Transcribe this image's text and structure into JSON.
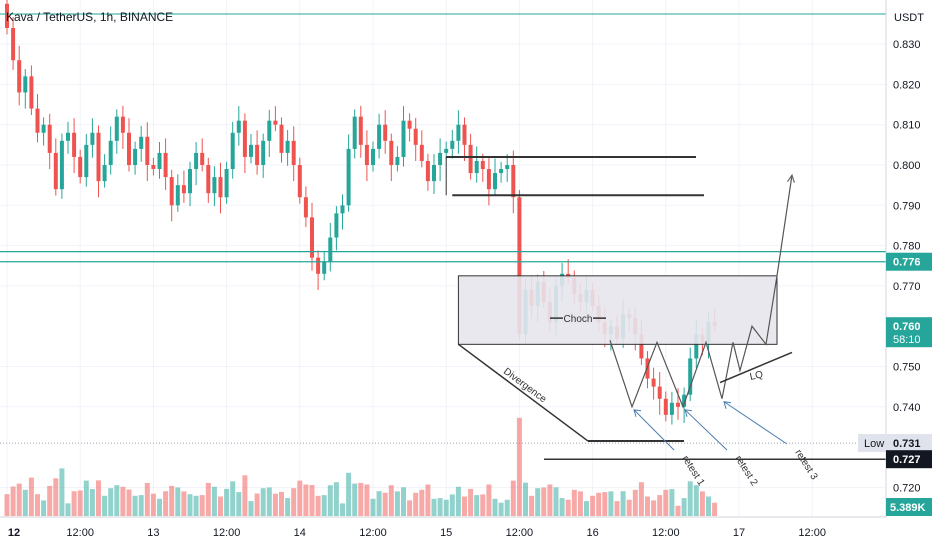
{
  "chart_data": {
    "type": "candlestick",
    "title": "Kava / TetherUS, 1h, BINANCE",
    "currency": "USDT",
    "y_ticks": [
      0.83,
      0.82,
      0.81,
      0.8,
      0.79,
      0.78,
      0.77,
      0.75,
      0.74,
      0.72
    ],
    "y_tick_labels": [
      "0.830",
      "0.820",
      "0.810",
      "0.800",
      "0.790",
      "0.780",
      "0.770",
      "0.750",
      "0.740",
      "0.720"
    ],
    "x_ticks": [
      {
        "hour": 0,
        "label": "12"
      },
      {
        "hour": 12,
        "label": "12:00"
      },
      {
        "hour": 24,
        "label": "13"
      },
      {
        "hour": 36,
        "label": "12:00"
      },
      {
        "hour": 48,
        "label": "14"
      },
      {
        "hour": 60,
        "label": "12:00"
      },
      {
        "hour": 72,
        "label": "15"
      },
      {
        "hour": 84,
        "label": "12:00"
      },
      {
        "hour": 96,
        "label": "16"
      },
      {
        "hour": 108,
        "label": "12:00"
      },
      {
        "hour": 120,
        "label": "17"
      },
      {
        "hour": 132,
        "label": "12:00"
      }
    ],
    "candles_closes": [
      0.834,
      0.826,
      0.818,
      0.822,
      0.814,
      0.808,
      0.81,
      0.803,
      0.794,
      0.806,
      0.808,
      0.802,
      0.797,
      0.805,
      0.808,
      0.796,
      0.8,
      0.806,
      0.812,
      0.808,
      0.8,
      0.804,
      0.807,
      0.8,
      0.799,
      0.803,
      0.797,
      0.79,
      0.795,
      0.793,
      0.799,
      0.803,
      0.8,
      0.793,
      0.797,
      0.792,
      0.799,
      0.808,
      0.811,
      0.802,
      0.805,
      0.8,
      0.806,
      0.811,
      0.81,
      0.803,
      0.806,
      0.8,
      0.792,
      0.787,
      0.777,
      0.773,
      0.776,
      0.782,
      0.788,
      0.79,
      0.804,
      0.812,
      0.805,
      0.8,
      0.804,
      0.81,
      0.806,
      0.8,
      0.802,
      0.811,
      0.809,
      0.805,
      0.801,
      0.796,
      0.8,
      0.803,
      0.804,
      0.806,
      0.81,
      0.805,
      0.798,
      0.801,
      0.799,
      0.794,
      0.798,
      0.799,
      0.8,
      0.792,
      0.758,
      0.769,
      0.765,
      0.771,
      0.766,
      0.761,
      0.77,
      0.773,
      0.772,
      0.768,
      0.766,
      0.769,
      0.765,
      0.761,
      0.758,
      0.76,
      0.757,
      0.763,
      0.762,
      0.758,
      0.752,
      0.747,
      0.745,
      0.742,
      0.738,
      0.741,
      0.74,
      0.743,
      0.752,
      0.758,
      0.756,
      0.761,
      0.76
    ],
    "high_line_values": [
      0.802,
      0.7925
    ],
    "support_line_values": [
      0.7315,
      0.727
    ],
    "range_box": {
      "top": 0.7725,
      "bottom": 0.7555
    },
    "horizontal_levels": [
      0.7785,
      0.776
    ],
    "price_labels": [
      {
        "value": 0.776,
        "text": "0.776",
        "style": "teal"
      },
      {
        "value": 0.76,
        "text": "0.760",
        "sub": "58:10",
        "style": "green"
      },
      {
        "value": 0.731,
        "text": "0.731",
        "label": "Low",
        "style": "gray"
      },
      {
        "value": 0.727,
        "text": "0.727",
        "style": "black"
      }
    ],
    "volume_label": "5.389K",
    "annotations": {
      "choch": "Choch",
      "lq": "LQ",
      "divergence": "Divergence",
      "retests": [
        "retest 1",
        "retest 2",
        "retest 3"
      ]
    },
    "colors": {
      "up": "#26a69a",
      "down": "#ef5350",
      "level": "#26a69a",
      "drawing": "#333333",
      "retest": "#4a7bb0",
      "box_fill": "#e6e6ec",
      "zigzag": "#555555",
      "arrow": "#666666"
    }
  }
}
